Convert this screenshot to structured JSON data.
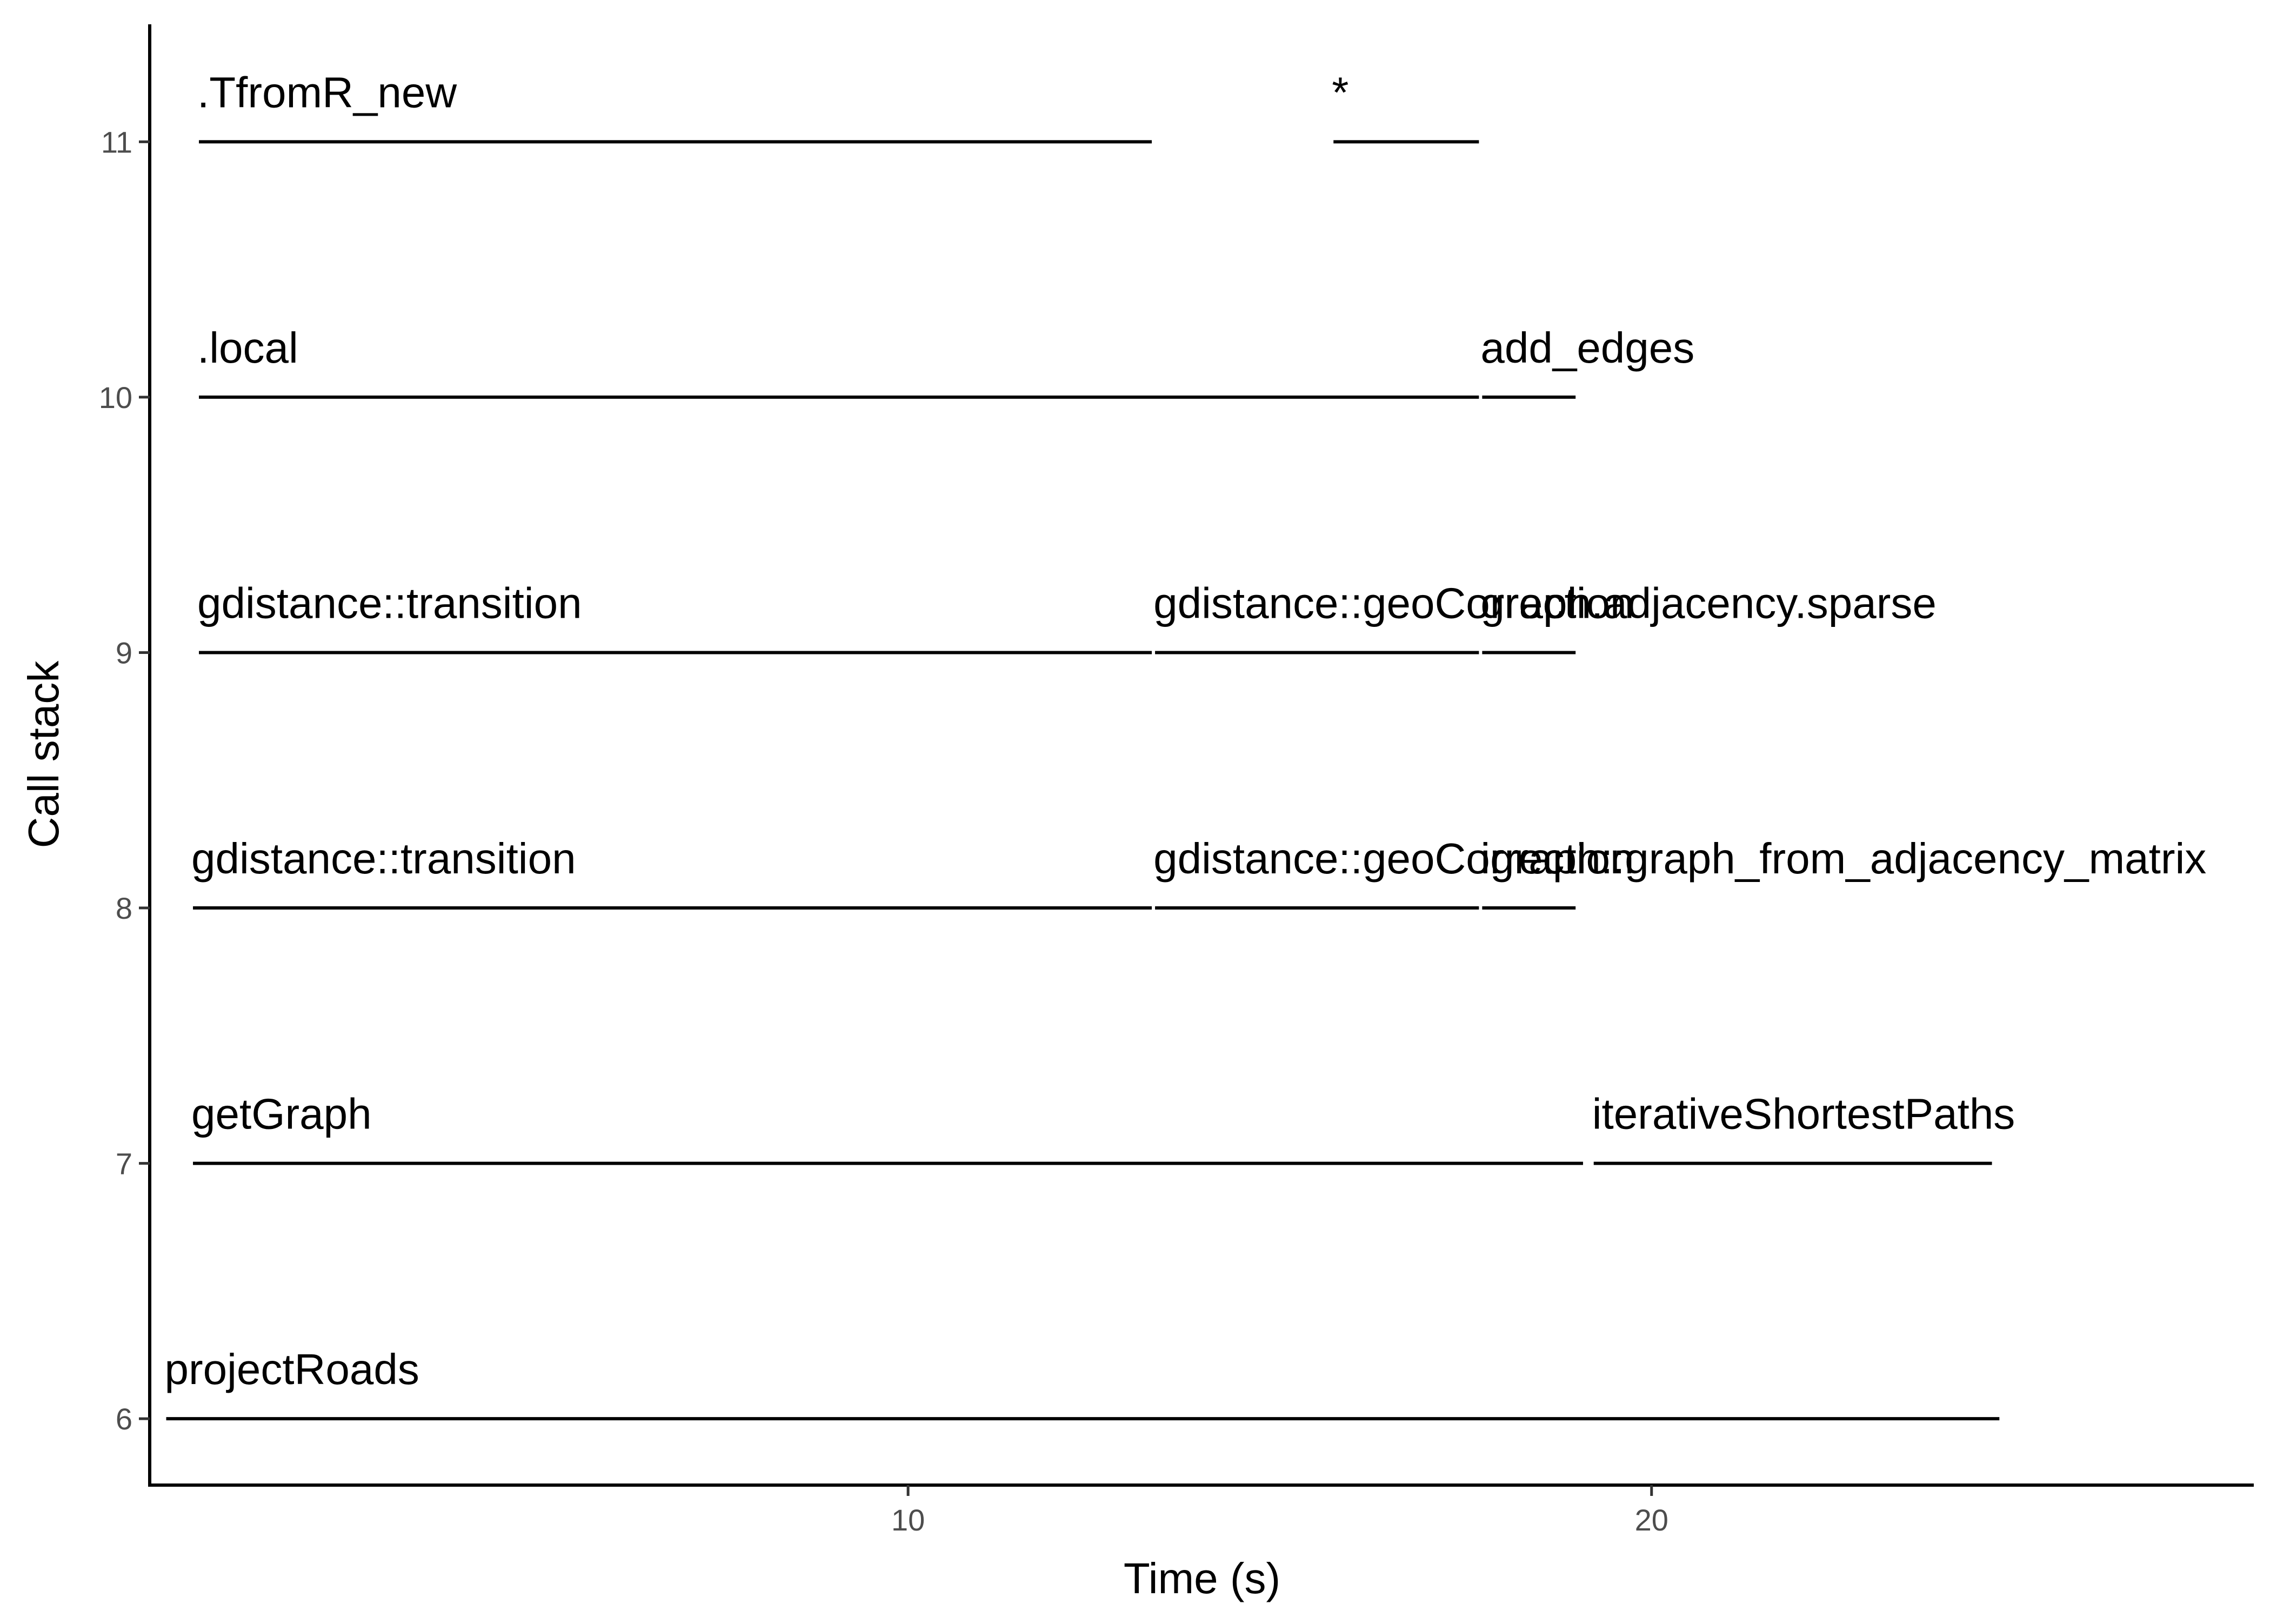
{
  "chart_data": {
    "type": "segment",
    "xlabel": "Time (s)",
    "ylabel": "Call stack",
    "xlim": [
      -0.2,
      28.1
    ],
    "ylim": [
      5.74,
      11.46
    ],
    "x_ticks": [
      10,
      20
    ],
    "y_ticks": [
      6,
      7,
      8,
      9,
      10,
      11
    ],
    "grid": false,
    "segments": [
      {
        "label": "projectRoads",
        "depth": 6,
        "start": 0.0,
        "end": 24.7
      },
      {
        "label": "getGraph",
        "depth": 7,
        "start": 0.36,
        "end": 19.1
      },
      {
        "label": "iterativeShortestPaths",
        "depth": 7,
        "start": 19.2,
        "end": 24.6
      },
      {
        "label": "gdistance::transition",
        "depth": 8,
        "start": 0.36,
        "end": 13.3
      },
      {
        "label": "gdistance::geoCorrection",
        "depth": 8,
        "start": 13.3,
        "end": 17.7
      },
      {
        "label": "igraph::graph_from_adjacency_matrix",
        "depth": 8,
        "start": 17.7,
        "end": 19.0
      },
      {
        "label": "gdistance::transition",
        "depth": 9,
        "start": 0.44,
        "end": 13.3
      },
      {
        "label": "gdistance::geoCorrection",
        "depth": 9,
        "start": 13.3,
        "end": 17.7
      },
      {
        "label": "graph.adjacency.sparse",
        "depth": 9,
        "start": 17.7,
        "end": 19.0
      },
      {
        "label": ".local",
        "depth": 10,
        "start": 0.44,
        "end": 17.7
      },
      {
        "label": "add_edges",
        "depth": 10,
        "start": 17.7,
        "end": 19.0
      },
      {
        "label": ".TfromR_new",
        "depth": 11,
        "start": 0.44,
        "end": 13.3
      },
      {
        "label": "*",
        "depth": 11,
        "start": 15.7,
        "end": 17.7
      }
    ]
  }
}
